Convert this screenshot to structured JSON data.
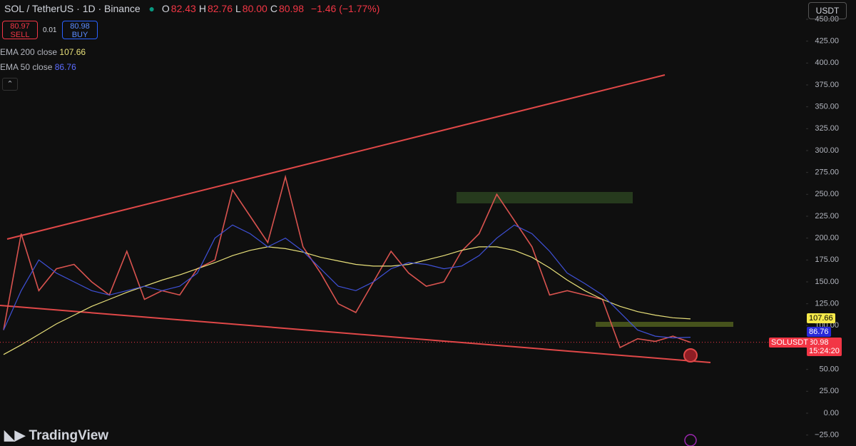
{
  "header": {
    "symbol": "SOL / TetherUS · 1D · Binance",
    "ohlc": [
      {
        "label": "O",
        "value": "82.43"
      },
      {
        "label": "H",
        "value": "82.76"
      },
      {
        "label": "L",
        "value": "80.00"
      },
      {
        "label": "C",
        "value": "80.98"
      }
    ],
    "change": "−1.46 (−1.77%)",
    "currency": "USDT"
  },
  "trade": {
    "sell_price": "80.97",
    "sell_label": "SELL",
    "spread": "0.01",
    "buy_price": "80.98",
    "buy_label": "BUY"
  },
  "countdown": "15:24:20",
  "watermark": "TradingView",
  "chart_data": {
    "type": "line",
    "series": [
      {
        "name": "SOLUSDT",
        "color": "#d9534f",
        "values": [
          95,
          205,
          140,
          165,
          170,
          150,
          135,
          185,
          130,
          140,
          135,
          165,
          175,
          255,
          225,
          195,
          270,
          190,
          160,
          125,
          115,
          150,
          185,
          160,
          145,
          150,
          185,
          205,
          250,
          220,
          190,
          135,
          140,
          135,
          130,
          75,
          85,
          82,
          88,
          80.98
        ]
      },
      {
        "name": "EMA 200 close",
        "color": "#e8e07a",
        "values": [
          67,
          78,
          90,
          102,
          112,
          122,
          130,
          138,
          145,
          152,
          158,
          165,
          172,
          180,
          186,
          190,
          188,
          184,
          178,
          174,
          170,
          168,
          168,
          170,
          175,
          180,
          186,
          190,
          190,
          186,
          178,
          166,
          152,
          140,
          130,
          122,
          116,
          112,
          109,
          107.66
        ]
      },
      {
        "name": "EMA 50 close",
        "color": "#3f51d8",
        "values": [
          95,
          140,
          175,
          160,
          150,
          140,
          135,
          140,
          145,
          140,
          145,
          160,
          200,
          215,
          205,
          190,
          200,
          185,
          165,
          145,
          140,
          150,
          165,
          172,
          170,
          165,
          168,
          180,
          200,
          215,
          205,
          185,
          160,
          148,
          135,
          115,
          95,
          88,
          86,
          86.76
        ]
      }
    ],
    "ylim": [
      -37.5,
      472
    ],
    "yticks": [
      {
        "value": -25,
        "label": "−25.00"
      },
      {
        "value": 0,
        "label": "0.00"
      },
      {
        "value": 25,
        "label": "25.00"
      },
      {
        "value": 50,
        "label": "50.00"
      },
      {
        "value": 75,
        "label": "75.00"
      },
      {
        "value": 100,
        "label": "100.00"
      },
      {
        "value": 125,
        "label": "125.00"
      },
      {
        "value": 150,
        "label": "150.00"
      },
      {
        "value": 175,
        "label": "175.00"
      },
      {
        "value": 200,
        "label": "200.00"
      },
      {
        "value": 225,
        "label": "225.00"
      },
      {
        "value": 250,
        "label": "250.00"
      },
      {
        "value": 275,
        "label": "275.00"
      },
      {
        "value": 300,
        "label": "300.00"
      },
      {
        "value": 325,
        "label": "325.00"
      },
      {
        "value": 350,
        "label": "350.00"
      },
      {
        "value": 375,
        "label": "375.00"
      },
      {
        "value": 400,
        "label": "400.00"
      },
      {
        "value": 425,
        "label": "425.00"
      },
      {
        "value": 450,
        "label": "450.00"
      }
    ]
  }
}
